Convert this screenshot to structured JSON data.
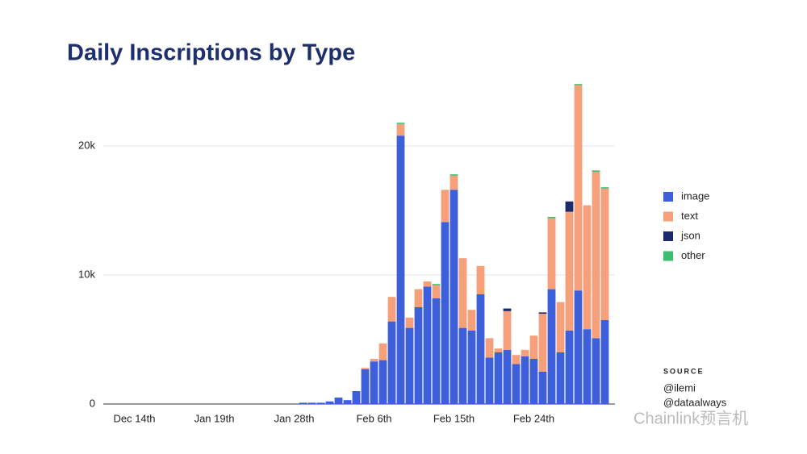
{
  "chart_data": {
    "type": "stacked_bar",
    "title": "Daily Inscriptions by Type",
    "categories": [
      null,
      null,
      null,
      "Dec 14th",
      null,
      null,
      null,
      null,
      null,
      null,
      null,
      null,
      "Jan 19th",
      null,
      null,
      null,
      null,
      null,
      null,
      null,
      null,
      "Jan 28th",
      null,
      null,
      null,
      null,
      null,
      null,
      null,
      null,
      "Feb 6th",
      null,
      null,
      null,
      null,
      null,
      null,
      null,
      null,
      "Feb 15th",
      null,
      null,
      null,
      null,
      null,
      null,
      null,
      null,
      "Feb 24th",
      null,
      null,
      null,
      null,
      null,
      null,
      null,
      null
    ],
    "series": [
      {
        "name": "image",
        "color": "#3d5fd9",
        "values": [
          0,
          0,
          0,
          0,
          0,
          0,
          0,
          0,
          0,
          0,
          0,
          0,
          0,
          0,
          0,
          0,
          0,
          0,
          0,
          0,
          0,
          0,
          100,
          100,
          100,
          200,
          500,
          300,
          1000,
          2700,
          3300,
          3400,
          6400,
          20800,
          5900,
          7500,
          9100,
          8200,
          14100,
          16600,
          5900,
          5700,
          8500,
          3600,
          4000,
          4200,
          3100,
          3700,
          3500,
          2500,
          8900,
          4000,
          5700,
          8800,
          5800,
          5100,
          6500
        ]
      },
      {
        "name": "text",
        "color": "#f5a07a",
        "values": [
          0,
          0,
          0,
          0,
          0,
          0,
          0,
          0,
          0,
          0,
          0,
          0,
          0,
          0,
          0,
          0,
          0,
          0,
          0,
          0,
          0,
          0,
          0,
          0,
          0,
          0,
          0,
          0,
          0,
          100,
          200,
          1300,
          1900,
          900,
          800,
          1400,
          400,
          1000,
          2500,
          1100,
          5400,
          1600,
          2200,
          1500,
          300,
          3000,
          700,
          500,
          1800,
          4500,
          5500,
          3900,
          9200,
          15900,
          9600,
          12900,
          10200
        ]
      },
      {
        "name": "json",
        "color": "#1b2a6b",
        "values": [
          0,
          0,
          0,
          0,
          0,
          0,
          0,
          0,
          0,
          0,
          0,
          0,
          0,
          0,
          0,
          0,
          0,
          0,
          0,
          0,
          0,
          0,
          0,
          0,
          0,
          0,
          0,
          0,
          0,
          0,
          0,
          0,
          0,
          0,
          0,
          0,
          0,
          0,
          0,
          0,
          0,
          0,
          0,
          0,
          0,
          200,
          0,
          0,
          0,
          100,
          0,
          0,
          800,
          0,
          0,
          0,
          0
        ]
      },
      {
        "name": "other",
        "color": "#3dbd6e",
        "values": [
          0,
          0,
          0,
          0,
          0,
          0,
          0,
          0,
          0,
          0,
          0,
          0,
          0,
          0,
          0,
          0,
          0,
          0,
          0,
          0,
          0,
          0,
          0,
          0,
          0,
          0,
          0,
          0,
          0,
          0,
          0,
          0,
          0,
          100,
          0,
          0,
          0,
          100,
          0,
          100,
          0,
          0,
          0,
          0,
          0,
          0,
          0,
          0,
          0,
          0,
          100,
          0,
          0,
          100,
          0,
          100,
          100
        ]
      }
    ],
    "ylim": [
      0,
      25000
    ],
    "yticks": [
      0,
      {
        "value": 10000,
        "label": "10k"
      },
      {
        "value": 20000,
        "label": "20k"
      }
    ],
    "grid": true,
    "legend_position": "right",
    "source_label": "SOURCE",
    "source": [
      "@ilemi",
      "@dataalways"
    ],
    "watermark": "Chainlink预言机"
  }
}
